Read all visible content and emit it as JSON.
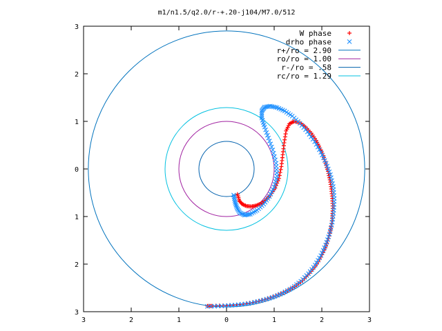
{
  "chart_data": {
    "type": "scatter",
    "title": "m1/n1.5/q2.0/r-+.20-j104/M7.0/512",
    "xlim": [
      -3,
      3
    ],
    "ylim": [
      -3,
      3
    ],
    "x_ticks": [
      -3,
      -2,
      -1,
      0,
      1,
      2,
      3
    ],
    "y_ticks": [
      -3,
      -2,
      -1,
      0,
      1,
      2,
      3
    ],
    "x_tick_labels": [
      "3",
      "2",
      "1",
      "0",
      "1",
      "2",
      "3"
    ],
    "y_tick_labels": [
      "3",
      "2",
      "1",
      "0",
      "1",
      "2",
      "3"
    ],
    "grid": false,
    "legend_position": "top-right",
    "series": [
      {
        "name": "W phase",
        "marker": "plus",
        "color": "#ff0000",
        "points": [
          [
            0.23,
            -0.53
          ],
          [
            0.27,
            -0.67
          ],
          [
            0.33,
            -0.74
          ],
          [
            0.42,
            -0.78
          ],
          [
            0.52,
            -0.79
          ],
          [
            0.62,
            -0.77
          ],
          [
            0.72,
            -0.73
          ],
          [
            0.82,
            -0.66
          ],
          [
            0.92,
            -0.55
          ],
          [
            1.02,
            -0.4
          ],
          [
            1.1,
            -0.2
          ],
          [
            1.15,
            0.05
          ],
          [
            1.18,
            0.3
          ],
          [
            1.21,
            0.55
          ],
          [
            1.25,
            0.8
          ],
          [
            1.32,
            0.95
          ],
          [
            1.42,
            1.0
          ],
          [
            1.54,
            0.97
          ],
          [
            1.66,
            0.88
          ],
          [
            1.78,
            0.75
          ],
          [
            1.88,
            0.6
          ],
          [
            1.96,
            0.44
          ],
          [
            2.03,
            0.28
          ],
          [
            2.08,
            0.12
          ],
          [
            2.13,
            -0.05
          ],
          [
            2.17,
            -0.23
          ],
          [
            2.2,
            -0.42
          ],
          [
            2.22,
            -0.62
          ],
          [
            2.23,
            -0.83
          ],
          [
            2.22,
            -1.04
          ],
          [
            2.19,
            -1.25
          ],
          [
            2.14,
            -1.46
          ],
          [
            2.07,
            -1.66
          ],
          [
            1.98,
            -1.85
          ],
          [
            1.87,
            -2.03
          ],
          [
            1.74,
            -2.19
          ],
          [
            1.6,
            -2.34
          ],
          [
            1.43,
            -2.47
          ],
          [
            1.24,
            -2.58
          ],
          [
            1.03,
            -2.67
          ],
          [
            0.8,
            -2.75
          ],
          [
            0.55,
            -2.81
          ],
          [
            0.28,
            -2.85
          ],
          [
            0.0,
            -2.87
          ],
          [
            -0.3,
            -2.88
          ],
          [
            -0.4,
            -2.88
          ]
        ]
      },
      {
        "name": "drho phase",
        "marker": "cross",
        "color": "#1e90ff",
        "points": [
          [
            0.15,
            -0.55
          ],
          [
            0.18,
            -0.7
          ],
          [
            0.22,
            -0.82
          ],
          [
            0.28,
            -0.92
          ],
          [
            0.38,
            -0.97
          ],
          [
            0.5,
            -0.95
          ],
          [
            0.64,
            -0.87
          ],
          [
            0.78,
            -0.74
          ],
          [
            0.9,
            -0.58
          ],
          [
            1.0,
            -0.38
          ],
          [
            1.06,
            -0.15
          ],
          [
            1.04,
            0.12
          ],
          [
            0.97,
            0.4
          ],
          [
            0.88,
            0.65
          ],
          [
            0.8,
            0.88
          ],
          [
            0.74,
            1.07
          ],
          [
            0.74,
            1.22
          ],
          [
            0.8,
            1.3
          ],
          [
            0.92,
            1.32
          ],
          [
            1.06,
            1.29
          ],
          [
            1.22,
            1.22
          ],
          [
            1.38,
            1.11
          ],
          [
            1.54,
            0.96
          ],
          [
            1.7,
            0.78
          ],
          [
            1.85,
            0.57
          ],
          [
            1.98,
            0.35
          ],
          [
            2.09,
            0.12
          ],
          [
            2.18,
            -0.12
          ],
          [
            2.24,
            -0.37
          ],
          [
            2.26,
            -0.62
          ],
          [
            2.25,
            -0.87
          ],
          [
            2.22,
            -1.12
          ],
          [
            2.16,
            -1.37
          ],
          [
            2.08,
            -1.6
          ],
          [
            1.98,
            -1.82
          ],
          [
            1.86,
            -2.02
          ],
          [
            1.72,
            -2.2
          ],
          [
            1.56,
            -2.36
          ],
          [
            1.38,
            -2.5
          ],
          [
            1.18,
            -2.61
          ],
          [
            0.96,
            -2.7
          ],
          [
            0.72,
            -2.77
          ],
          [
            0.46,
            -2.83
          ],
          [
            0.18,
            -2.86
          ],
          [
            -0.1,
            -2.88
          ],
          [
            -0.4,
            -2.89
          ]
        ]
      },
      {
        "name": "r+/ro = 2.90",
        "type": "circle",
        "radius": 2.9,
        "color": "#0072bd"
      },
      {
        "name": "ro/ro = 1.00",
        "type": "circle",
        "radius": 1.0,
        "color": "#a020a0"
      },
      {
        "name": "r-/ro = .58",
        "type": "circle",
        "radius": 0.58,
        "color": "#0060ad"
      },
      {
        "name": "rc/ro = 1.29",
        "type": "circle",
        "radius": 1.29,
        "color": "#00c0e0"
      }
    ]
  }
}
